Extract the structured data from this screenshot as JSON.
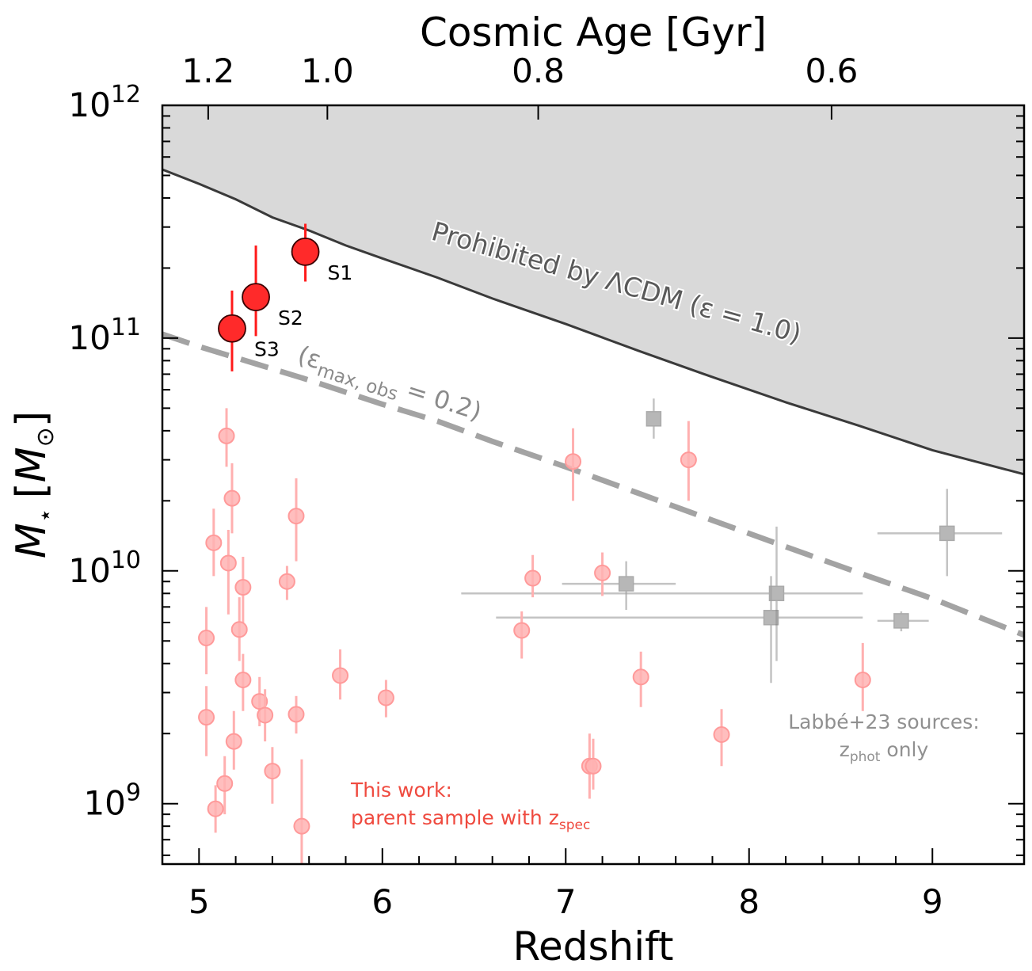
{
  "chart_data": {
    "type": "scatter",
    "xlabel": "Redshift",
    "ylabel_main": "M",
    "ylabel_sub": "⋆",
    "ylabel_unit_open": "[",
    "ylabel_unit_main": "M",
    "ylabel_unit_sub": "⊙",
    "ylabel_unit_close": "]",
    "top_axis_label": "Cosmic Age [Gyr]",
    "xlim": [
      4.8,
      9.5
    ],
    "ylim": [
      550000000.0,
      1000000000000.0
    ],
    "y_scale": "log",
    "x_ticks": [
      5,
      6,
      7,
      8,
      9
    ],
    "x_tick_labels": [
      "5",
      "6",
      "7",
      "8",
      "9"
    ],
    "y_ticks": [
      1000000000.0,
      10000000000.0,
      100000000000.0,
      1000000000000.0
    ],
    "y_tick_base": "10",
    "y_tick_exponents": [
      "9",
      "10",
      "11",
      "12"
    ],
    "top_ticks": [
      {
        "label": "1.2",
        "z": 5.05
      },
      {
        "label": "1.0",
        "z": 5.7
      },
      {
        "label": "0.8",
        "z": 6.85
      },
      {
        "label": "0.6",
        "z": 8.45
      }
    ],
    "lcdm_limit": {
      "label": "Prohibited by ΛCDM (ε = 1.0)",
      "x": [
        4.8,
        5.0,
        5.2,
        5.4,
        5.6,
        5.8,
        6.0,
        6.3,
        6.6,
        7.0,
        7.4,
        7.8,
        8.2,
        8.6,
        9.0,
        9.5
      ],
      "y": [
        530000000000.0,
        460000000000.0,
        395000000000.0,
        330000000000.0,
        290000000000.0,
        250000000000.0,
        220000000000.0,
        182000000000.0,
        148000000000.0,
        115000000000.0,
        88000000000.0,
        68000000000.0,
        53000000000.0,
        42000000000.0,
        33000000000.0,
        26000000000.0
      ]
    },
    "obs_limit": {
      "label_prefix": "(ε",
      "label_sub": "max, obs",
      "label_suffix": " = 0.2)",
      "x": [
        4.8,
        5.0,
        5.3,
        5.6,
        6.0,
        6.3,
        6.6,
        7.0,
        7.4,
        7.8,
        8.2,
        8.6,
        9.0,
        9.5
      ],
      "y": [
        104000000000.0,
        92000000000.0,
        78000000000.0,
        66000000000.0,
        52000000000.0,
        44000000000.0,
        36000000000.0,
        28000000000.0,
        21500000000.0,
        16500000000.0,
        12700000000.0,
        9800000000.0,
        7600000000.0,
        5300000000.0
      ]
    },
    "highlight_sources": [
      {
        "name": "S1",
        "z": 5.58,
        "mass": 235000000000.0,
        "err_lo": 175000000000.0,
        "err_hi": 310000000000.0
      },
      {
        "name": "S2",
        "z": 5.31,
        "mass": 150000000000.0,
        "err_lo": 102000000000.0,
        "err_hi": 250000000000.0
      },
      {
        "name": "S3",
        "z": 5.18,
        "mass": 110000000000.0,
        "err_lo": 72000000000.0,
        "err_hi": 160000000000.0
      }
    ],
    "parent_sample": {
      "legend_line1": "This work:",
      "legend_line2_prefix": "parent sample with z",
      "legend_line2_sub": "spec",
      "color": "#ff6b6b",
      "points": [
        {
          "z": 5.15,
          "mass": 38000000000.0,
          "err_lo": 28000000000.0,
          "err_hi": 50000000000.0
        },
        {
          "z": 5.18,
          "mass": 20500000000.0,
          "err_lo": 14500000000.0,
          "err_hi": 29000000000.0
        },
        {
          "z": 5.08,
          "mass": 13200000000.0,
          "err_lo": 9500000000.0,
          "err_hi": 18500000000.0
        },
        {
          "z": 5.16,
          "mass": 10800000000.0,
          "err_lo": 6500000000.0,
          "err_hi": 15000000000.0
        },
        {
          "z": 5.24,
          "mass": 8500000000.0,
          "err_lo": 6000000000.0,
          "err_hi": 11500000000.0
        },
        {
          "z": 5.22,
          "mass": 5600000000.0,
          "err_lo": 4100000000.0,
          "err_hi": 7700000000.0
        },
        {
          "z": 5.04,
          "mass": 5150000000.0,
          "err_lo": 3600000000.0,
          "err_hi": 7000000000.0
        },
        {
          "z": 5.24,
          "mass": 3400000000.0,
          "err_lo": 2500000000.0,
          "err_hi": 4400000000.0
        },
        {
          "z": 5.33,
          "mass": 2750000000.0,
          "err_lo": 2150000000.0,
          "err_hi": 3500000000.0
        },
        {
          "z": 5.36,
          "mass": 2400000000.0,
          "err_lo": 1850000000.0,
          "err_hi": 3100000000.0
        },
        {
          "z": 5.04,
          "mass": 2350000000.0,
          "err_lo": 1600000000.0,
          "err_hi": 3200000000.0
        },
        {
          "z": 5.19,
          "mass": 1850000000.0,
          "err_lo": 1400000000.0,
          "err_hi": 2500000000.0
        },
        {
          "z": 5.4,
          "mass": 1380000000.0,
          "err_lo": 1000000000.0,
          "err_hi": 1750000000.0
        },
        {
          "z": 5.14,
          "mass": 1220000000.0,
          "err_lo": 900000000.0,
          "err_hi": 1600000000.0
        },
        {
          "z": 5.09,
          "mass": 950000000.0,
          "err_lo": 750000000.0,
          "err_hi": 1200000000.0
        },
        {
          "z": 5.48,
          "mass": 9000000000.0,
          "err_lo": 7500000000.0,
          "err_hi": 10500000000.0
        },
        {
          "z": 5.53,
          "mass": 17200000000.0,
          "err_lo": 11000000000.0,
          "err_hi": 25000000000.0
        },
        {
          "z": 5.53,
          "mass": 2420000000.0,
          "err_lo": 2000000000.0,
          "err_hi": 2900000000.0
        },
        {
          "z": 5.56,
          "mass": 800000000.0,
          "err_lo": 500000000.0,
          "err_hi": 1550000000.0
        },
        {
          "z": 5.77,
          "mass": 3550000000.0,
          "err_lo": 2800000000.0,
          "err_hi": 4600000000.0
        },
        {
          "z": 6.02,
          "mass": 2850000000.0,
          "err_lo": 2350000000.0,
          "err_hi": 3400000000.0
        },
        {
          "z": 6.76,
          "mass": 5550000000.0,
          "err_lo": 4200000000.0,
          "err_hi": 6700000000.0
        },
        {
          "z": 6.82,
          "mass": 9300000000.0,
          "err_lo": 7700000000.0,
          "err_hi": 11700000000.0
        },
        {
          "z": 7.04,
          "mass": 29500000000.0,
          "err_lo": 20000000000.0,
          "err_hi": 41000000000.0
        },
        {
          "z": 7.13,
          "mass": 1450000000.0,
          "err_lo": 1050000000.0,
          "err_hi": 2000000000.0
        },
        {
          "z": 7.15,
          "mass": 1450000000.0,
          "err_lo": 1150000000.0,
          "err_hi": 1900000000.0
        },
        {
          "z": 7.2,
          "mass": 9800000000.0,
          "err_lo": 7800000000.0,
          "err_hi": 12000000000.0
        },
        {
          "z": 7.41,
          "mass": 3500000000.0,
          "err_lo": 2600000000.0,
          "err_hi": 4500000000.0
        },
        {
          "z": 7.67,
          "mass": 30000000000.0,
          "err_lo": 20000000000.0,
          "err_hi": 44000000000.0
        },
        {
          "z": 7.85,
          "mass": 1980000000.0,
          "err_lo": 1450000000.0,
          "err_hi": 2550000000.0
        },
        {
          "z": 8.62,
          "mass": 3400000000.0,
          "err_lo": 2500000000.0,
          "err_hi": 4900000000.0
        }
      ]
    },
    "labbe_sources": {
      "legend_line1": "Labbé+23 sources:",
      "legend_line2_prefix": "z",
      "legend_line2_sub": "phot",
      "legend_line2_suffix": " only",
      "color": "#9a9a9a",
      "points": [
        {
          "z": 7.48,
          "mass": 45000000000.0,
          "err_lo": 37000000000.0,
          "err_hi": 55000000000.0,
          "x_lo": 7.46,
          "x_hi": 7.5
        },
        {
          "z": 7.33,
          "mass": 8800000000.0,
          "err_lo": 6800000000.0,
          "err_hi": 11000000000.0,
          "x_lo": 6.98,
          "x_hi": 7.6
        },
        {
          "z": 8.15,
          "mass": 8000000000.0,
          "err_lo": 4100000000.0,
          "err_hi": 15500000000.0,
          "x_lo": 6.43,
          "x_hi": 8.62
        },
        {
          "z": 8.12,
          "mass": 6300000000.0,
          "err_lo": 3300000000.0,
          "err_hi": 9500000000.0,
          "x_lo": 6.62,
          "x_hi": 8.62
        },
        {
          "z": 8.83,
          "mass": 6100000000.0,
          "err_lo": 5500000000.0,
          "err_hi": 6700000000.0,
          "x_lo": 8.7,
          "x_hi": 8.98
        },
        {
          "z": 9.08,
          "mass": 14500000000.0,
          "err_lo": 9500000000.0,
          "err_hi": 22500000000.0,
          "x_lo": 8.7,
          "x_hi": 9.38
        }
      ]
    }
  }
}
